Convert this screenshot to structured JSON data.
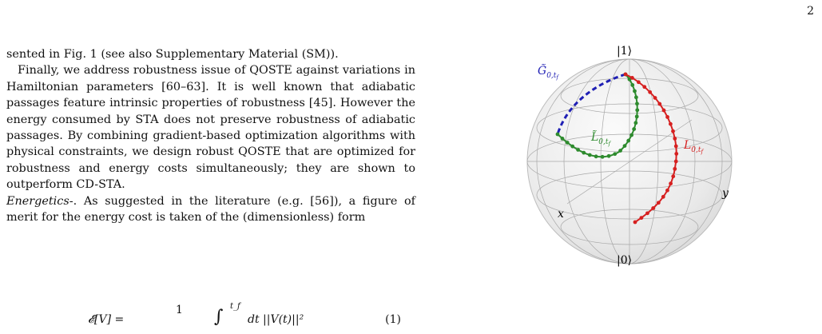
{
  "page": {
    "number": "2"
  },
  "text": {
    "line_1": "sented in Fig. 1 (see also Supplementary Material (SM)).",
    "para_2": "Finally, we address robustness issue of QOSTE against variations in Hamiltonian parameters [60–63]. It is well known that adiabatic passages feature intrinsic properties of robustness [45]. However the energy consumed by STA does not preserve robustness of adiabatic passages. By combining gradient-based optimization algorithms with physical constraints, we design robust QOSTE that are optimized for robustness and energy costs simultaneously; they are shown to outperform CD-STA.",
    "energetics_head": "Energetics",
    "energetics_sep": "-.",
    "para_3_rest": " As suggested in the literature (e.g. [56]), a figure of merit for the energy cost is taken of the (dimensionless) form"
  },
  "equation": {
    "lhs": "𝓔[V] =",
    "frac_num": "1",
    "upper_limit": "t_f",
    "integrand": "dt ||V(t)||²",
    "number": "(1)"
  },
  "figure": {
    "state_top": "|1⟩",
    "state_bottom": "|0⟩",
    "axis_x": "x",
    "axis_y": "y",
    "label_G": "G̃",
    "label_G_sub": "0,t",
    "label_L_tilde": "L̃",
    "label_L_tilde_sub": "0,t",
    "label_L": "L",
    "label_L_sub": "0,t",
    "sub_f": "f",
    "colors": {
      "G": "#1f1fb4",
      "L_tilde": "#2e8b2e",
      "L": "#d62020",
      "sphere": "#e6e6e6",
      "grid": "#9a9a9a"
    }
  }
}
